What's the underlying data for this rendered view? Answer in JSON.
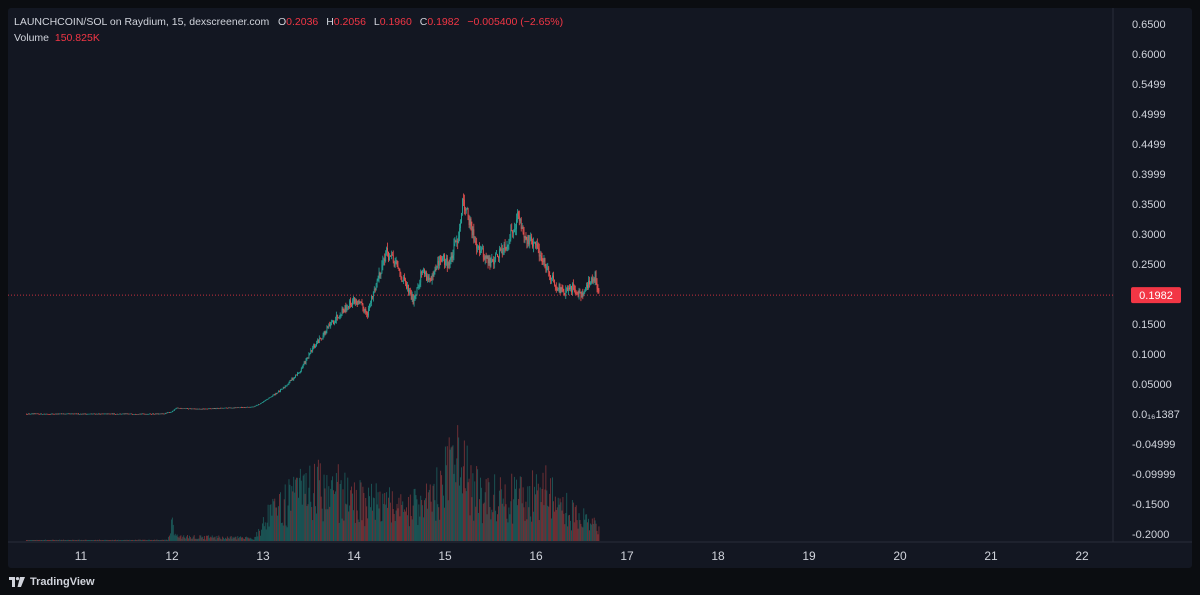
{
  "legend": {
    "pair": "LAUNCHCOIN/SOL on Raydium, 15, dexscreener.com",
    "o_label": "O",
    "o_value": "0.2036",
    "h_label": "H",
    "h_value": "0.2056",
    "l_label": "L",
    "l_value": "0.1960",
    "c_label": "C",
    "c_value": "0.1982",
    "change": "−0.005400 (−2.65%)",
    "volume_label": "Volume",
    "volume_value": "150.825K"
  },
  "footer": {
    "brand": "TradingView",
    "logo_icon": "tradingview-logo-icon"
  },
  "colors": {
    "background": "#131722",
    "up": "#26a69a",
    "down": "#ef5350",
    "price_line": "#f23645",
    "text": "#d1d4dc"
  },
  "chart_data": {
    "type": "candlestick",
    "title": "LAUNCHCOIN/SOL on Raydium, 15, dexscreener.com",
    "y_tick_labels": [
      "0.6500",
      "0.6000",
      "0.5499",
      "0.4999",
      "0.4499",
      "0.3999",
      "0.3500",
      "0.3000",
      "0.2500",
      "0.1500",
      "0.1000",
      "0.05000",
      "0.0₁₆1387",
      "-0.04999",
      "-0.09999",
      "-0.1500",
      "-0.2000"
    ],
    "y_tick_values": [
      0.65,
      0.6,
      0.55,
      0.5,
      0.45,
      0.4,
      0.35,
      0.3,
      0.25,
      0.15,
      0.1,
      0.05,
      0.0,
      -0.05,
      -0.1,
      -0.15,
      -0.2
    ],
    "x_tick_labels": [
      "11",
      "12",
      "13",
      "14",
      "15",
      "16",
      "17",
      "18",
      "19",
      "20",
      "21",
      "22"
    ],
    "x_tick_values": [
      11,
      12,
      13,
      14,
      15,
      16,
      17,
      18,
      19,
      20,
      21,
      22
    ],
    "ylim": [
      -0.22,
      0.66
    ],
    "xlim": [
      10.35,
      22.65
    ],
    "last_price": 0.1982,
    "last_price_label": "0.1982",
    "price_path": [
      [
        10.4,
        0.0001
      ],
      [
        11.9,
        0.0001
      ],
      [
        12.0,
        0.004
      ],
      [
        12.05,
        0.01
      ],
      [
        12.3,
        0.008
      ],
      [
        12.6,
        0.01
      ],
      [
        12.9,
        0.012
      ],
      [
        13.0,
        0.02
      ],
      [
        13.2,
        0.04
      ],
      [
        13.4,
        0.07
      ],
      [
        13.55,
        0.11
      ],
      [
        13.7,
        0.14
      ],
      [
        13.85,
        0.17
      ],
      [
        14.0,
        0.19
      ],
      [
        14.15,
        0.17
      ],
      [
        14.25,
        0.22
      ],
      [
        14.35,
        0.27
      ],
      [
        14.45,
        0.25
      ],
      [
        14.55,
        0.22
      ],
      [
        14.65,
        0.19
      ],
      [
        14.75,
        0.24
      ],
      [
        14.85,
        0.22
      ],
      [
        14.95,
        0.26
      ],
      [
        15.05,
        0.25
      ],
      [
        15.15,
        0.3
      ],
      [
        15.2,
        0.36
      ],
      [
        15.3,
        0.3
      ],
      [
        15.4,
        0.27
      ],
      [
        15.5,
        0.25
      ],
      [
        15.6,
        0.27
      ],
      [
        15.7,
        0.29
      ],
      [
        15.8,
        0.33
      ],
      [
        15.9,
        0.29
      ],
      [
        16.0,
        0.28
      ],
      [
        16.1,
        0.25
      ],
      [
        16.2,
        0.22
      ],
      [
        16.3,
        0.2
      ],
      [
        16.4,
        0.21
      ],
      [
        16.5,
        0.2
      ],
      [
        16.6,
        0.22
      ],
      [
        16.65,
        0.23
      ],
      [
        16.7,
        0.1982
      ]
    ],
    "volume_scale_max": 1.0,
    "volume_profile": [
      [
        10.4,
        0.01
      ],
      [
        11.95,
        0.01
      ],
      [
        12.0,
        0.18
      ],
      [
        12.05,
        0.05
      ],
      [
        12.9,
        0.03
      ],
      [
        13.05,
        0.25
      ],
      [
        13.3,
        0.45
      ],
      [
        13.5,
        0.55
      ],
      [
        13.75,
        0.6
      ],
      [
        14.0,
        0.45
      ],
      [
        14.3,
        0.4
      ],
      [
        14.6,
        0.35
      ],
      [
        14.9,
        0.5
      ],
      [
        15.15,
        0.9
      ],
      [
        15.3,
        0.55
      ],
      [
        15.6,
        0.45
      ],
      [
        15.9,
        0.5
      ],
      [
        16.1,
        0.55
      ],
      [
        16.4,
        0.3
      ],
      [
        16.7,
        0.15
      ]
    ]
  }
}
